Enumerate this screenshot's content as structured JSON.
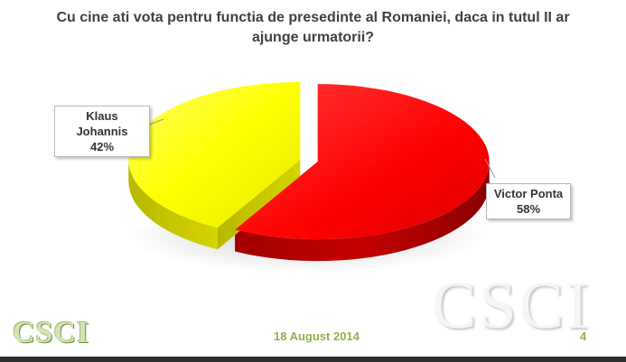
{
  "chart_data": {
    "type": "pie",
    "title": "Cu cine ati vota pentru functia de presedinte al Romaniei, daca in tutul II ar ajunge urmatorii?",
    "slices": [
      {
        "label": "Victor Ponta",
        "value": 58,
        "value_label": "58%",
        "color": "#ff0000"
      },
      {
        "label": "Klaus Johannis",
        "value": 42,
        "value_label": "42%",
        "color": "#ffff00"
      }
    ],
    "style": "3d-exploded"
  },
  "footer": {
    "logo_text": "CSCI",
    "watermark_text": "CSCI",
    "date": "18 August 2014",
    "page_number": "4"
  }
}
